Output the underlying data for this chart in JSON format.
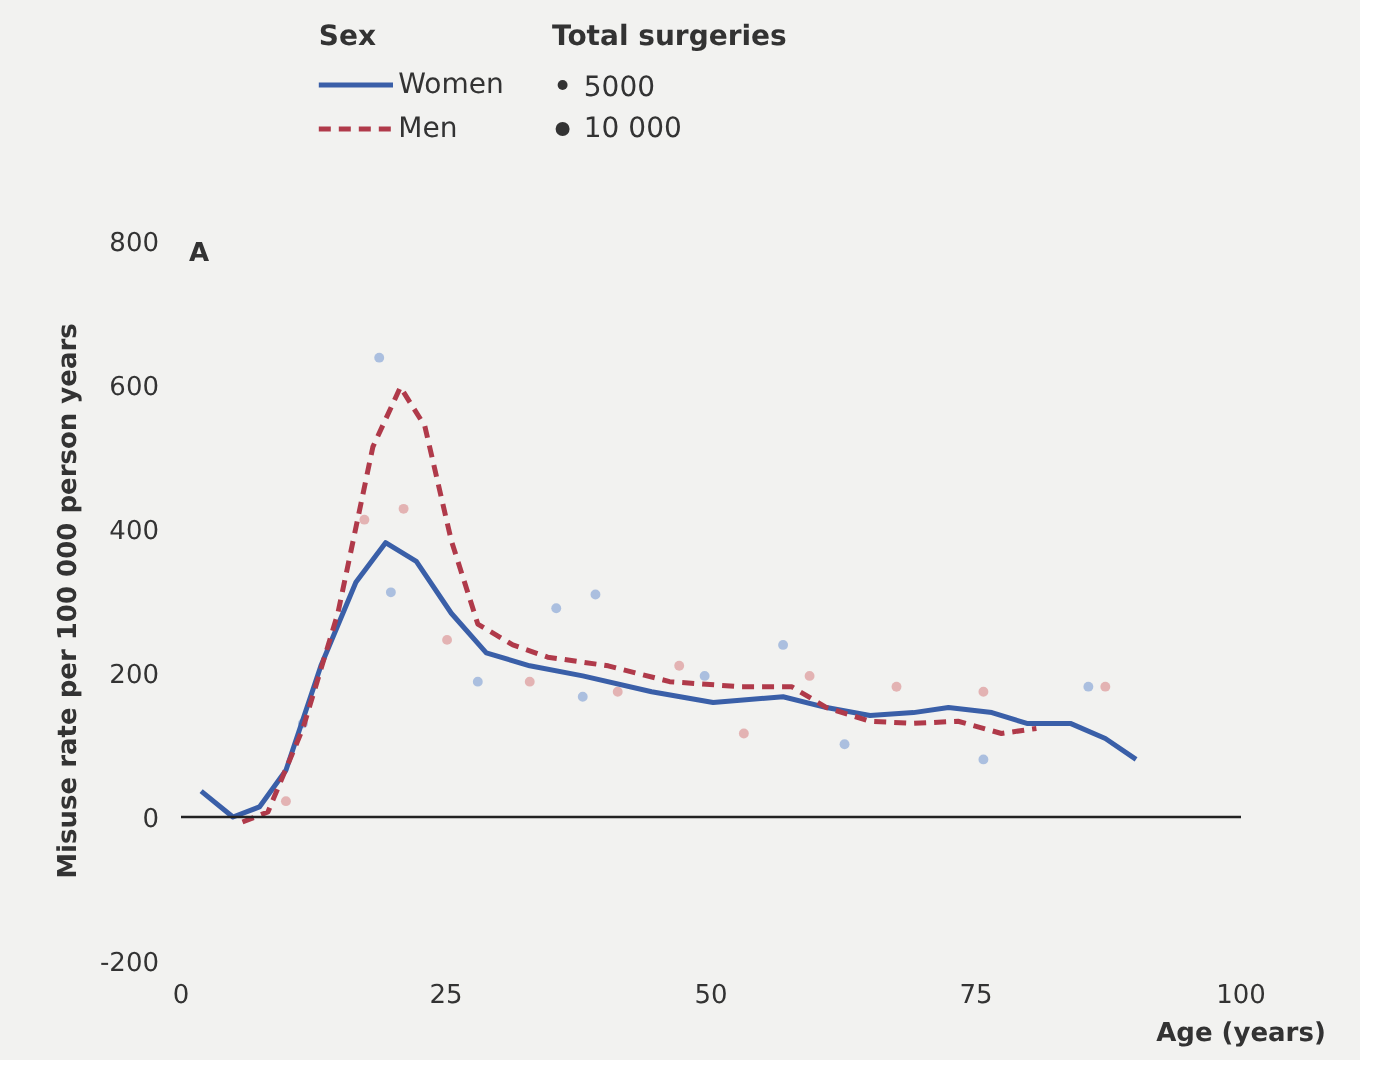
{
  "chart_data": {
    "type": "line",
    "xlabel": "Age (years)",
    "ylabel": "Misuse rate per 100 000 person years",
    "legend_title": "Sex",
    "annotations": [
      "Total surgeries",
      "A"
    ],
    "xlim": [
      0,
      100
    ],
    "ylim": [
      -200,
      800
    ],
    "xticks": [
      0,
      25,
      50,
      75,
      100
    ],
    "yticks": [
      -200,
      0,
      200,
      400,
      600,
      800
    ],
    "grid": false,
    "legend": "top left",
    "ref_lines": [
      {
        "axis": "y",
        "value": 0,
        "color": "#222222"
      }
    ],
    "size_legend": [
      5000,
      {
        "value": 10000,
        "label": "10 000"
      }
    ],
    "series": [
      {
        "name": "Women",
        "color": "#3a5fa8",
        "line_style": "solid",
        "x": [
          1.9,
          4.9,
          7.4,
          9.9,
          13.2,
          16.5,
          19.3,
          22.2,
          25.5,
          28.8,
          32.9,
          37.9,
          44.4,
          50.2,
          56.8,
          60.9,
          65,
          69.1,
          72.4,
          76.5,
          79.8,
          83.9,
          87.2,
          90.1
        ],
        "values": [
          36,
          0,
          14,
          65,
          210,
          326,
          381,
          355,
          283,
          228,
          210,
          196,
          174,
          159,
          167,
          152,
          141,
          145,
          152,
          145,
          130,
          130,
          109,
          80
        ]
      },
      {
        "name": "Men",
        "color": "#b03a4a",
        "line_style": "dashed",
        "x": [
          5.8,
          8.2,
          11.5,
          14.8,
          18.1,
          20.7,
          23,
          25.5,
          28,
          31.3,
          34.6,
          40.3,
          46.1,
          52.7,
          57.6,
          60.9,
          65,
          69.1,
          73.3,
          77.4,
          80.7
        ],
        "values": [
          -7,
          7,
          123,
          283,
          514,
          597,
          543,
          384,
          268,
          239,
          222,
          210,
          188,
          181,
          181,
          152,
          133,
          130,
          133,
          116,
          123
        ]
      },
      {
        "type": "bubble",
        "color": "#9fb6dc",
        "x": [
          11.5,
          18.7,
          19.8,
          28,
          35.4,
          37.9,
          39.1,
          49.4,
          56.8,
          62.6,
          75.7,
          85.6
        ],
        "values": [
          130,
          638,
          312,
          188,
          290,
          167,
          309,
          196,
          239,
          101,
          80,
          181
        ],
        "sizes": [
          5000,
          5000,
          5000,
          5000,
          5000,
          5000,
          5000,
          5000,
          5000,
          5000,
          5000,
          5000
        ]
      },
      {
        "type": "bubble",
        "color": "#e0a8a8",
        "x": [
          9.9,
          17.3,
          21,
          25.1,
          32.9,
          41.2,
          47,
          53.1,
          59.3,
          67.5,
          75.7,
          87.2
        ],
        "values": [
          22,
          413,
          428,
          246,
          188,
          174,
          210,
          116,
          196,
          181,
          174,
          181
        ],
        "sizes": [
          5000,
          5000,
          5000,
          5000,
          5000,
          5000,
          5000,
          5000,
          5000,
          5000,
          5000,
          5000
        ]
      }
    ]
  }
}
